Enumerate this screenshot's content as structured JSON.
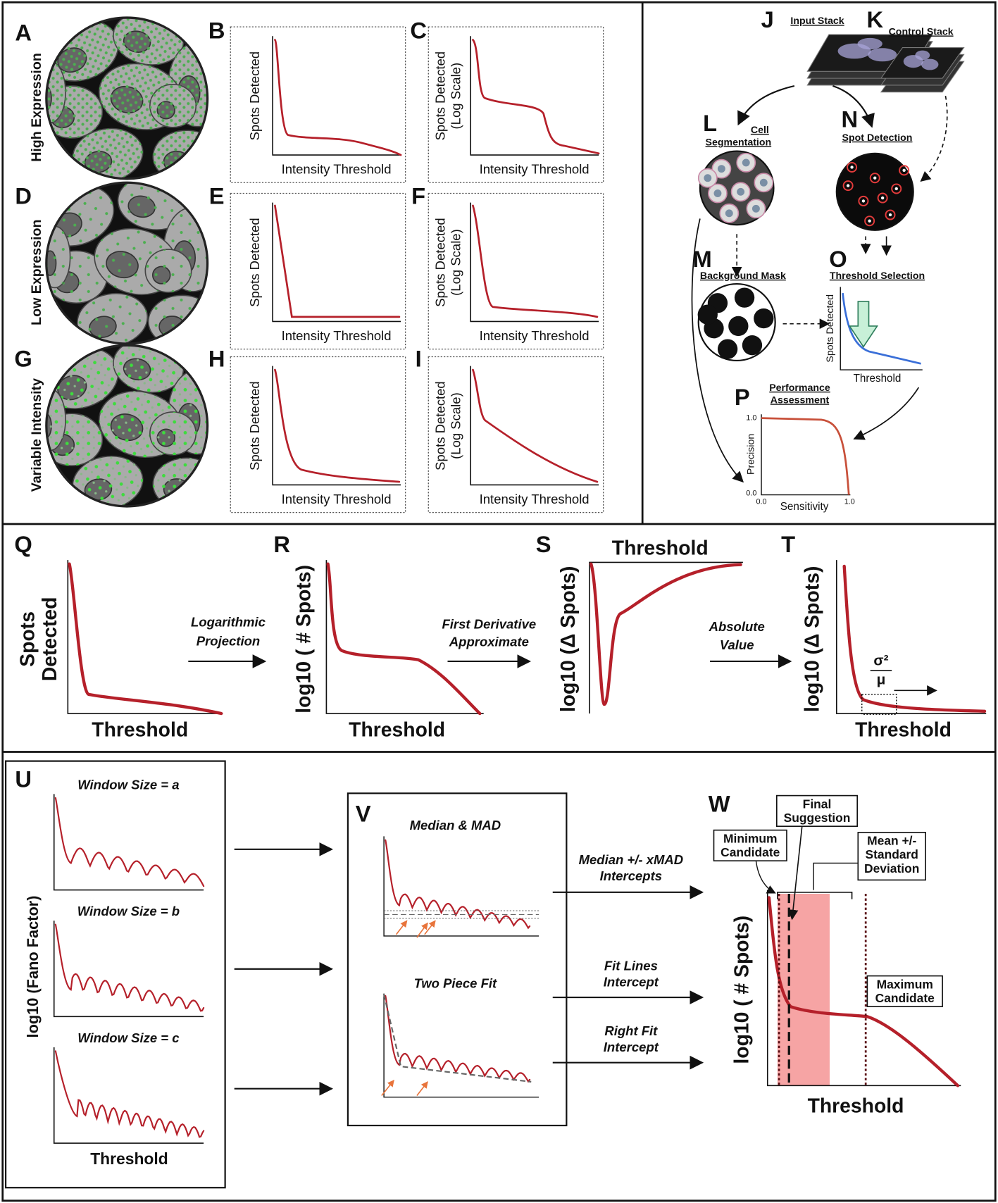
{
  "panel_letters": [
    "A",
    "B",
    "C",
    "D",
    "E",
    "F",
    "G",
    "H",
    "I",
    "J",
    "K",
    "L",
    "M",
    "N",
    "O",
    "P",
    "Q",
    "R",
    "S",
    "T",
    "U",
    "V",
    "W"
  ],
  "expression_labels": [
    "High Expression",
    "Low Expression",
    "Variable Intensity"
  ],
  "spot_plots": [
    {
      "ylabel": [
        "Spots Detected"
      ],
      "xlabel": "Intensity Threshold"
    },
    {
      "ylabel": [
        "Spots Detected",
        "(Log Scale)"
      ],
      "xlabel": "Intensity Threshold"
    },
    {
      "ylabel": [
        "Spots Detected"
      ],
      "xlabel": "Intensity Threshold"
    },
    {
      "ylabel": [
        "Spots Detected",
        "(Log Scale)"
      ],
      "xlabel": "Intensity Threshold"
    },
    {
      "ylabel": [
        "Spots Detected"
      ],
      "xlabel": "Intensity Threshold"
    },
    {
      "ylabel": [
        "Spots Detected",
        "(Log Scale)"
      ],
      "xlabel": "Intensity Threshold"
    }
  ],
  "workflow": {
    "input_stack": "Input Stack",
    "control_stack": "Control Stack",
    "cell_segmentation": [
      "Cell",
      "Segmentation"
    ],
    "spot_detection": "Spot Detection",
    "background_mask": "Background Mask",
    "threshold_selection": "Threshold Selection",
    "threshold_plot": {
      "ylabel": "Spots Detected",
      "xlabel": "Threshold"
    },
    "performance_assessment": [
      "Performance",
      "Assessment"
    ],
    "performance_plot": {
      "ylabel": "Precision",
      "xlabel": "Sensitivity",
      "yticks": [
        "1.0",
        "0.0"
      ],
      "xticks": [
        "0.0",
        "1.0"
      ]
    }
  },
  "pipeline": {
    "q": {
      "ylabel": [
        "Spots",
        "Detected"
      ],
      "xlabel": "Threshold"
    },
    "step1": [
      "Logarithmic",
      "Projection"
    ],
    "r": {
      "ylabel": "log10 ( # Spots)",
      "xlabel": "Threshold"
    },
    "step2": [
      "First Derivative",
      "Approximate"
    ],
    "s": {
      "ylabel": "log10 (Δ Spots)",
      "xlabel": "Threshold"
    },
    "step3": [
      "Absolute",
      "Value"
    ],
    "t": {
      "ylabel": "log10 (Δ Spots)",
      "fraction": [
        "σ²",
        "μ"
      ],
      "xlabel": "Threshold"
    }
  },
  "windows": {
    "titles": [
      "Window Size = a",
      "Window Size = b",
      "Window Size = c"
    ],
    "ylabel": "log10 (Fano Factor)",
    "xlabel": "Threshold"
  },
  "methods": {
    "titles": [
      "Median & MAD",
      "Two Piece Fit"
    ],
    "arrows": [
      [
        "Median +/- xMAD",
        "Intercepts"
      ],
      [
        "Fit Lines",
        "Intercept"
      ],
      [
        "Right Fit",
        "Intercept"
      ]
    ]
  },
  "suggestion": {
    "ylabel": "log10 ( # Spots)",
    "xlabel": "Threshold",
    "final": [
      "Final",
      "Suggestion"
    ],
    "minimum": [
      "Minimum",
      "Candidate"
    ],
    "mean": [
      "Mean +/-",
      "Standard",
      "Deviation"
    ],
    "maximum": [
      "Maximum",
      "Candidate"
    ]
  }
}
